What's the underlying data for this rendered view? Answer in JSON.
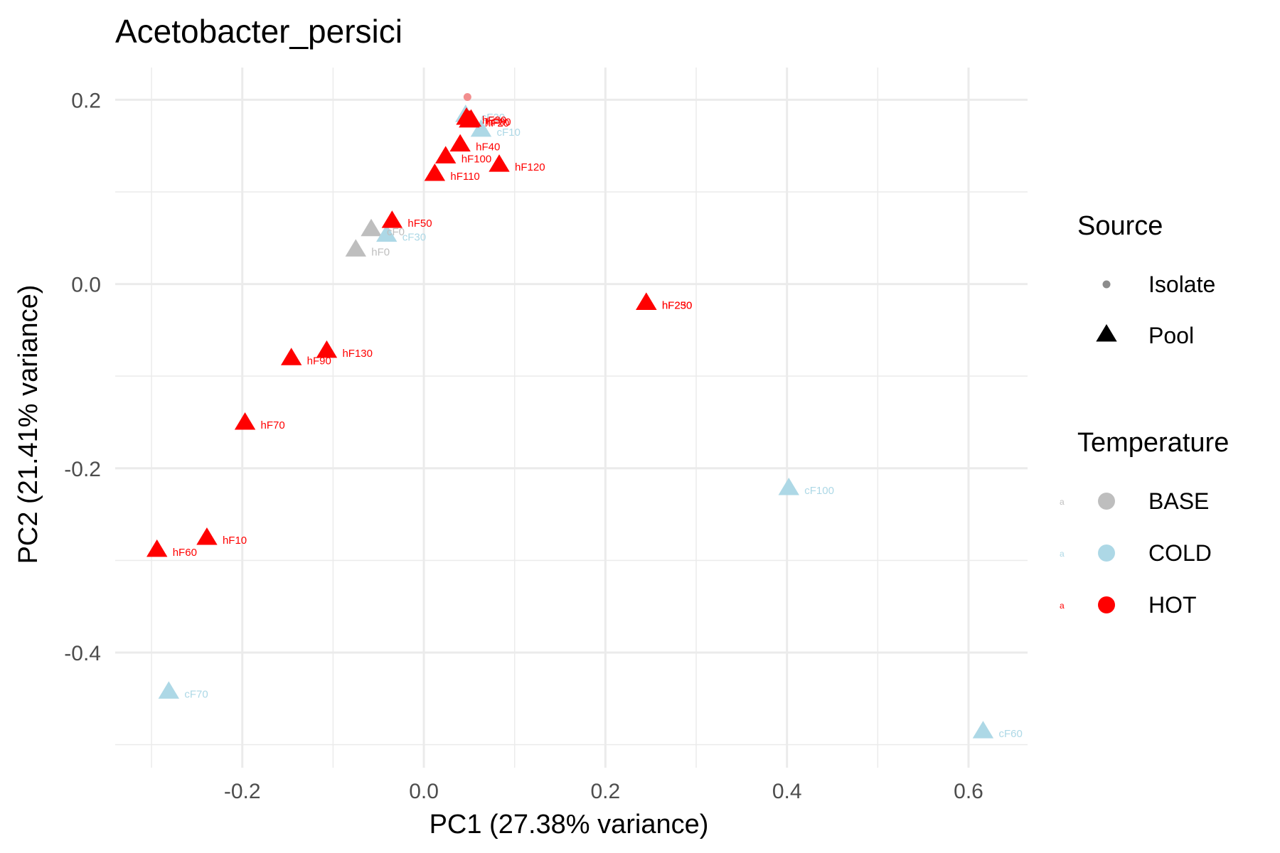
{
  "chart_data": {
    "type": "scatter",
    "title": "Acetobacter_persici",
    "xlabel": "PC1 (27.38% variance)",
    "ylabel": "PC2 (21.41% variance)",
    "xlim": [
      -0.34,
      0.665
    ],
    "ylim": [
      -0.525,
      0.235
    ],
    "x_ticks": [
      -0.2,
      0.0,
      0.2,
      0.4,
      0.6
    ],
    "x_tick_labels": [
      "-0.2",
      "0.0",
      "0.2",
      "0.4",
      "0.6"
    ],
    "y_ticks": [
      -0.4,
      -0.2,
      0.0,
      0.2
    ],
    "y_tick_labels": [
      "-0.4",
      "-0.2",
      "0.0",
      "0.2"
    ],
    "grid": true,
    "legend_position": "right",
    "colors": {
      "BASE": "#bebebe",
      "COLD": "#add8e6",
      "HOT": "#ff0000",
      "isolate_point": "#f28e8e"
    },
    "legend": {
      "shape": {
        "title": "Source",
        "items": [
          {
            "label": "Isolate",
            "shape": "circle"
          },
          {
            "label": "Pool",
            "shape": "triangle"
          }
        ]
      },
      "color": {
        "title": "Temperature",
        "items": [
          {
            "label": "BASE",
            "key": "BASE"
          },
          {
            "label": "COLD",
            "key": "COLD"
          },
          {
            "label": "HOT",
            "key": "HOT"
          }
        ],
        "key_letter": "a"
      }
    },
    "points": [
      {
        "label": "",
        "x": 0.048,
        "y": 0.203,
        "source": "Isolate",
        "temp": "HOT"
      },
      {
        "label": "cF20",
        "x": 0.046,
        "y": 0.184,
        "source": "Pool",
        "temp": "COLD"
      },
      {
        "label": "cF10",
        "x": 0.063,
        "y": 0.168,
        "source": "Pool",
        "temp": "COLD"
      },
      {
        "label": "hF30",
        "x": 0.047,
        "y": 0.181,
        "source": "Pool",
        "temp": "HOT"
      },
      {
        "label": "hF80",
        "x": 0.052,
        "y": 0.179,
        "source": "Pool",
        "temp": "HOT"
      },
      {
        "label": "hF20",
        "x": 0.05,
        "y": 0.178,
        "source": "Pool",
        "temp": "HOT"
      },
      {
        "label": "hF40",
        "x": 0.04,
        "y": 0.152,
        "source": "Pool",
        "temp": "HOT"
      },
      {
        "label": "hF100",
        "x": 0.024,
        "y": 0.139,
        "source": "Pool",
        "temp": "HOT"
      },
      {
        "label": "hF120",
        "x": 0.083,
        "y": 0.13,
        "source": "Pool",
        "temp": "HOT"
      },
      {
        "label": "hF110",
        "x": 0.012,
        "y": 0.12,
        "source": "Pool",
        "temp": "HOT"
      },
      {
        "label": "cF0",
        "x": -0.058,
        "y": 0.06,
        "source": "Pool",
        "temp": "BASE"
      },
      {
        "label": "hF50",
        "x": -0.035,
        "y": 0.069,
        "source": "Pool",
        "temp": "HOT"
      },
      {
        "label": "cF30",
        "x": -0.041,
        "y": 0.054,
        "source": "Pool",
        "temp": "COLD"
      },
      {
        "label": "hF0",
        "x": -0.075,
        "y": 0.038,
        "source": "Pool",
        "temp": "BASE"
      },
      {
        "label": "hF230",
        "x": 0.245,
        "y": -0.02,
        "source": "Pool",
        "temp": "HOT"
      },
      {
        "label": "hF250",
        "x": 0.245,
        "y": -0.02,
        "source": "Pool",
        "temp": "HOT"
      },
      {
        "label": "hF130",
        "x": -0.107,
        "y": -0.072,
        "source": "Pool",
        "temp": "HOT"
      },
      {
        "label": "hF90",
        "x": -0.146,
        "y": -0.08,
        "source": "Pool",
        "temp": "HOT"
      },
      {
        "label": "hF70",
        "x": -0.197,
        "y": -0.15,
        "source": "Pool",
        "temp": "HOT"
      },
      {
        "label": "cF100",
        "x": 0.402,
        "y": -0.221,
        "source": "Pool",
        "temp": "COLD"
      },
      {
        "label": "hF10",
        "x": -0.239,
        "y": -0.275,
        "source": "Pool",
        "temp": "HOT"
      },
      {
        "label": "hF60",
        "x": -0.294,
        "y": -0.288,
        "source": "Pool",
        "temp": "HOT"
      },
      {
        "label": "cF70",
        "x": -0.281,
        "y": -0.442,
        "source": "Pool",
        "temp": "COLD"
      },
      {
        "label": "cF60",
        "x": 0.616,
        "y": -0.485,
        "source": "Pool",
        "temp": "COLD"
      }
    ]
  }
}
